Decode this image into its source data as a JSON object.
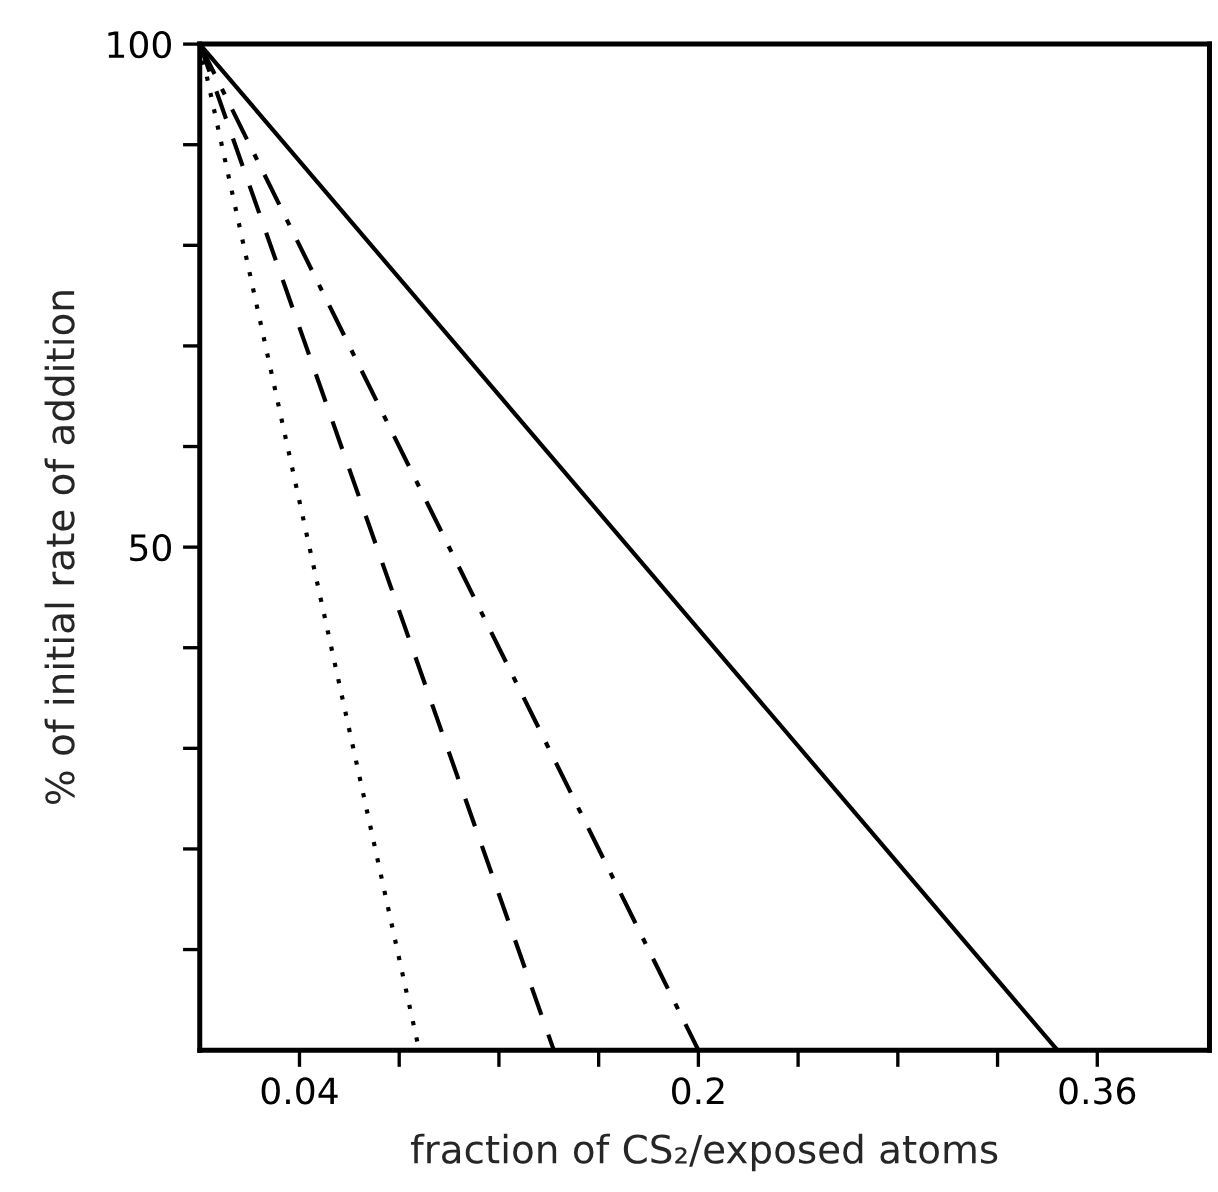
{
  "chart_data": {
    "type": "line",
    "xlabel": "fraction of CS₂/exposed atoms",
    "ylabel": "% of initial rate of addition",
    "series": [
      {
        "color": "#000000",
        "line_style": "dotted",
        "x": [
          0,
          0.088
        ],
        "values": [
          100,
          0
        ]
      },
      {
        "color": "#000000",
        "line_style": "dashed",
        "x": [
          0,
          0.142
        ],
        "values": [
          100,
          0
        ]
      },
      {
        "color": "#000000",
        "line_style": "dashdot",
        "x": [
          0,
          0.2
        ],
        "values": [
          100,
          0
        ]
      },
      {
        "color": "#000000",
        "line_style": "solid",
        "x": [
          0,
          0.344
        ],
        "values": [
          100,
          0
        ]
      }
    ],
    "xlim": [
      0,
      0.405
    ],
    "ylim": [
      0,
      100
    ],
    "xticks": [
      {
        "value": 0.04,
        "label": "0.04"
      },
      {
        "value": 0.08,
        "label": null
      },
      {
        "value": 0.12,
        "label": null
      },
      {
        "value": 0.16,
        "label": null
      },
      {
        "value": 0.2,
        "label": "0.2"
      },
      {
        "value": 0.24,
        "label": null
      },
      {
        "value": 0.28,
        "label": null
      },
      {
        "value": 0.32,
        "label": null
      },
      {
        "value": 0.36,
        "label": "0.36"
      }
    ],
    "yticks": [
      {
        "value": 10,
        "label": null
      },
      {
        "value": 20,
        "label": null
      },
      {
        "value": 30,
        "label": null
      },
      {
        "value": 40,
        "label": null
      },
      {
        "value": 50,
        "label": "50"
      },
      {
        "value": 60,
        "label": null
      },
      {
        "value": 70,
        "label": null
      },
      {
        "value": 80,
        "label": null
      },
      {
        "value": 90,
        "label": null
      },
      {
        "value": 100,
        "label": "100"
      }
    ],
    "grid": false,
    "legend": false
  }
}
